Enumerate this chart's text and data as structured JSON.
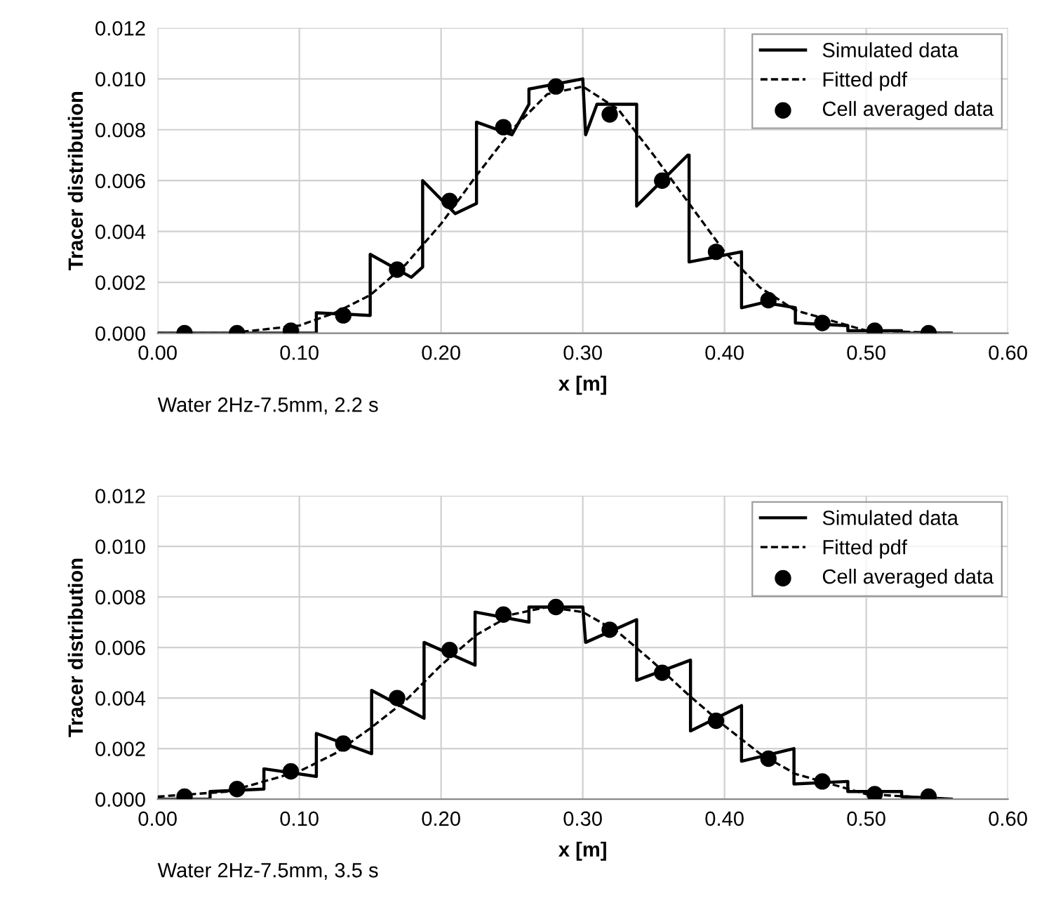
{
  "chart_data": [
    {
      "type": "line",
      "xlabel": "x [m]",
      "ylabel": "Tracer distribution",
      "annotations": [
        "Water 2Hz-7.5mm, 2.2 s"
      ],
      "legend": "top right",
      "grid": true,
      "xlim": [
        0,
        0.6
      ],
      "xticks": [
        {
          "value": 0,
          "label": "0.00"
        },
        {
          "value": 0.1,
          "label": "0.10"
        },
        {
          "value": 0.2,
          "label": "0.20"
        },
        {
          "value": 0.3,
          "label": "0.30"
        },
        {
          "value": 0.4,
          "label": "0.40"
        },
        {
          "value": 0.5,
          "label": "0.50"
        },
        {
          "value": 0.6,
          "label": "0.60"
        }
      ],
      "ylim": [
        0,
        0.012
      ],
      "yticks": [
        {
          "value": 0,
          "label": "0.000"
        },
        {
          "value": 0.002,
          "label": "0.002"
        },
        {
          "value": 0.004,
          "label": "0.004"
        },
        {
          "value": 0.006,
          "label": "0.006"
        },
        {
          "value": 0.008,
          "label": "0.008"
        },
        {
          "value": 0.01,
          "label": "0.010"
        },
        {
          "value": 0.012,
          "label": "0.012"
        }
      ],
      "series": [
        {
          "name": "Simulated data",
          "line_style": "solid",
          "marker": "none",
          "color": "#000000",
          "x": [
            0,
            0.112,
            0.112,
            0.15,
            0.15,
            0.179,
            0.187,
            0.187,
            0.21,
            0.225,
            0.225,
            0.25,
            0.262,
            0.262,
            0.3,
            0.302,
            0.31,
            0.338,
            0.338,
            0.374,
            0.375,
            0.375,
            0.412,
            0.412,
            0.427,
            0.44,
            0.45,
            0.45,
            0.487,
            0.487,
            0.525,
            0.525,
            0.56
          ],
          "values": [
            0,
            0,
            0.0008,
            0.0007,
            0.0031,
            0.0022,
            0.0026,
            0.006,
            0.0047,
            0.0051,
            0.0083,
            0.0078,
            0.009,
            0.0096,
            0.01,
            0.0078,
            0.009,
            0.009,
            0.005,
            0.007,
            0.007,
            0.0028,
            0.0032,
            0.001,
            0.0012,
            0.0011,
            0.001,
            0.0004,
            0.0003,
            0.0001,
            0.0001,
            0,
            0
          ]
        },
        {
          "name": "Fitted pdf",
          "line_style": "dashed",
          "marker": "none",
          "color": "#000000",
          "x": [
            0,
            0.05,
            0.1,
            0.125,
            0.15,
            0.175,
            0.2,
            0.225,
            0.25,
            0.275,
            0.3,
            0.325,
            0.35,
            0.375,
            0.4,
            0.425,
            0.45,
            0.5,
            0.56
          ],
          "values": [
            0,
            0,
            0.0003,
            0.0008,
            0.0015,
            0.0027,
            0.0043,
            0.0062,
            0.008,
            0.0094,
            0.0097,
            0.0088,
            0.007,
            0.0051,
            0.0032,
            0.0018,
            0.0009,
            0.0001,
            0
          ]
        },
        {
          "name": "Cell averaged data",
          "type": "scatter",
          "marker": "circle",
          "color": "#000000",
          "x": [
            0.019,
            0.056,
            0.094,
            0.131,
            0.169,
            0.206,
            0.244,
            0.281,
            0.319,
            0.356,
            0.394,
            0.431,
            0.469,
            0.506,
            0.544
          ],
          "values": [
            0,
            0,
            0.0001,
            0.0007,
            0.0025,
            0.0052,
            0.0081,
            0.0097,
            0.0086,
            0.006,
            0.0032,
            0.0013,
            0.0004,
            0.0001,
            0
          ]
        }
      ]
    },
    {
      "type": "line",
      "xlabel": "x [m]",
      "ylabel": "Tracer distribution",
      "annotations": [
        "Water 2Hz-7.5mm, 3.5 s"
      ],
      "legend": "top right",
      "grid": true,
      "xlim": [
        0,
        0.6
      ],
      "xticks": [
        {
          "value": 0,
          "label": "0.00"
        },
        {
          "value": 0.1,
          "label": "0.10"
        },
        {
          "value": 0.2,
          "label": "0.20"
        },
        {
          "value": 0.3,
          "label": "0.30"
        },
        {
          "value": 0.4,
          "label": "0.40"
        },
        {
          "value": 0.5,
          "label": "0.50"
        },
        {
          "value": 0.6,
          "label": "0.60"
        }
      ],
      "ylim": [
        0,
        0.012
      ],
      "yticks": [
        {
          "value": 0,
          "label": "0.000"
        },
        {
          "value": 0.002,
          "label": "0.002"
        },
        {
          "value": 0.004,
          "label": "0.004"
        },
        {
          "value": 0.006,
          "label": "0.006"
        },
        {
          "value": 0.008,
          "label": "0.008"
        },
        {
          "value": 0.01,
          "label": "0.010"
        },
        {
          "value": 0.012,
          "label": "0.012"
        }
      ],
      "series": [
        {
          "name": "Simulated data",
          "line_style": "solid",
          "marker": "none",
          "color": "#000000",
          "x": [
            0,
            0.037,
            0.037,
            0.075,
            0.075,
            0.112,
            0.112,
            0.151,
            0.151,
            0.188,
            0.188,
            0.224,
            0.224,
            0.262,
            0.262,
            0.3,
            0.302,
            0.338,
            0.338,
            0.376,
            0.376,
            0.412,
            0.412,
            0.449,
            0.449,
            0.487,
            0.487,
            0.525,
            0.525,
            0.56
          ],
          "values": [
            0,
            0,
            0.0003,
            0.0004,
            0.0012,
            0.0009,
            0.0026,
            0.0018,
            0.0043,
            0.0032,
            0.0062,
            0.0053,
            0.0074,
            0.007,
            0.0076,
            0.0076,
            0.0062,
            0.0071,
            0.0047,
            0.0055,
            0.0027,
            0.0037,
            0.0015,
            0.002,
            0.0006,
            0.0007,
            0.0003,
            0.0003,
            0.0001,
            0
          ]
        },
        {
          "name": "Fitted pdf",
          "line_style": "dashed",
          "marker": "none",
          "color": "#000000",
          "x": [
            0,
            0.05,
            0.1,
            0.125,
            0.15,
            0.175,
            0.2,
            0.225,
            0.25,
            0.275,
            0.3,
            0.325,
            0.35,
            0.375,
            0.4,
            0.425,
            0.45,
            0.5,
            0.56
          ],
          "values": [
            0.0001,
            0.0003,
            0.0011,
            0.0018,
            0.0028,
            0.0039,
            0.0053,
            0.0065,
            0.0073,
            0.0076,
            0.0074,
            0.0066,
            0.0054,
            0.0041,
            0.0029,
            0.0018,
            0.001,
            0.0002,
            0
          ]
        },
        {
          "name": "Cell averaged data",
          "type": "scatter",
          "marker": "circle",
          "color": "#000000",
          "x": [
            0.019,
            0.056,
            0.094,
            0.131,
            0.169,
            0.206,
            0.244,
            0.281,
            0.319,
            0.356,
            0.394,
            0.431,
            0.469,
            0.506,
            0.544
          ],
          "values": [
            0.0001,
            0.0004,
            0.0011,
            0.0022,
            0.004,
            0.0059,
            0.0073,
            0.0076,
            0.0067,
            0.005,
            0.0031,
            0.0016,
            0.0007,
            0.0002,
            0.0001
          ]
        }
      ]
    }
  ]
}
